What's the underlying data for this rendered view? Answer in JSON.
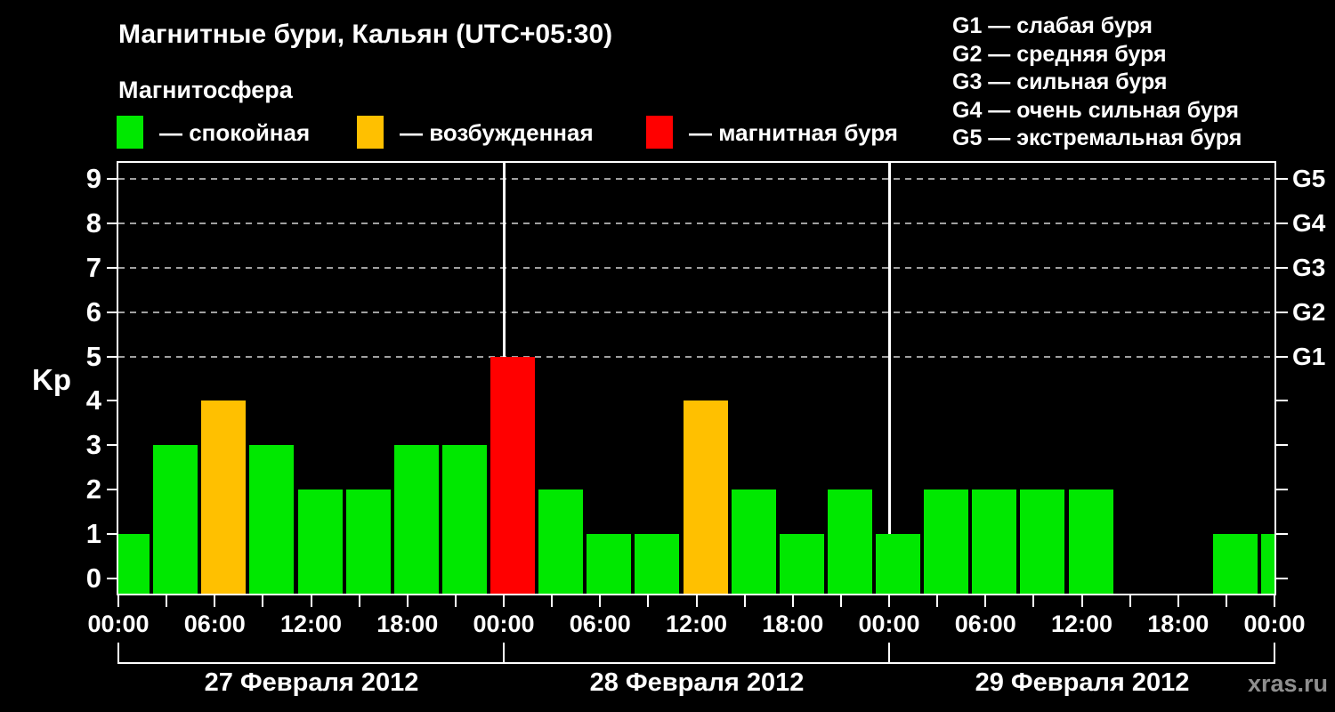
{
  "header": {
    "subtitle": "Магнитосфера"
  },
  "legend": [
    {
      "text": "— спокойная",
      "status": "quiet"
    },
    {
      "text": "— возбужденная",
      "status": "excited"
    },
    {
      "text": "— магнитная буря",
      "status": "storm"
    }
  ],
  "storm_scale": {
    "lines": [
      "G1 — слабая буря",
      "G2 — средняя буря",
      "G3 — сильная буря",
      "G4 — очень сильная буря",
      "G5 — экстремальная буря"
    ]
  },
  "watermark": "xras.ru",
  "chart_data": {
    "type": "bar",
    "title": "Магнитные бури, Кальян (UTC+05:30)",
    "ylabel": "Kp",
    "ylim": [
      0,
      9
    ],
    "y_ticks": [
      "0",
      "1",
      "2",
      "3",
      "4",
      "5",
      "6",
      "7",
      "8",
      "9"
    ],
    "grid_levels": [
      5,
      6,
      7,
      8,
      9
    ],
    "grid_on": true,
    "right_axis": [
      {
        "kp": 5,
        "label": "G1"
      },
      {
        "kp": 6,
        "label": "G2"
      },
      {
        "kp": 7,
        "label": "G3"
      },
      {
        "kp": 8,
        "label": "G4"
      },
      {
        "kp": 9,
        "label": "G5"
      }
    ],
    "x_tick_interval_hours": 3,
    "x_label_interval_hours": 6,
    "x_tick_labels": [
      "00:00",
      "06:00",
      "12:00",
      "18:00",
      "00:00",
      "06:00",
      "12:00",
      "18:00",
      "00:00",
      "06:00",
      "12:00",
      "18:00",
      "00:00"
    ],
    "days": [
      {
        "date": "27 Февраля 2012",
        "kp": [
          1,
          3,
          4,
          3,
          2,
          2,
          3,
          3
        ],
        "status": [
          "quiet",
          "quiet",
          "excited",
          "quiet",
          "quiet",
          "quiet",
          "quiet",
          "quiet"
        ]
      },
      {
        "date": "28 Февраля 2012",
        "kp": [
          5,
          2,
          1,
          1,
          4,
          2,
          1,
          2
        ],
        "status": [
          "storm",
          "quiet",
          "quiet",
          "quiet",
          "excited",
          "quiet",
          "quiet",
          "quiet"
        ]
      },
      {
        "date": "29 Февраля 2012",
        "kp": [
          1,
          2,
          2,
          2,
          2,
          null,
          null,
          1
        ],
        "status": [
          "quiet",
          "quiet",
          "quiet",
          "quiet",
          "quiet",
          null,
          null,
          "quiet"
        ]
      }
    ],
    "overflow_bar": {
      "kp": 1,
      "status": "quiet"
    },
    "colors": {
      "quiet": "#00e800",
      "excited": "#ffc000",
      "storm": "#ff0000",
      "axis": "#ffffff",
      "grid": "#a0a0a0",
      "background": "#000000",
      "watermark": "#8f8f8f"
    }
  }
}
